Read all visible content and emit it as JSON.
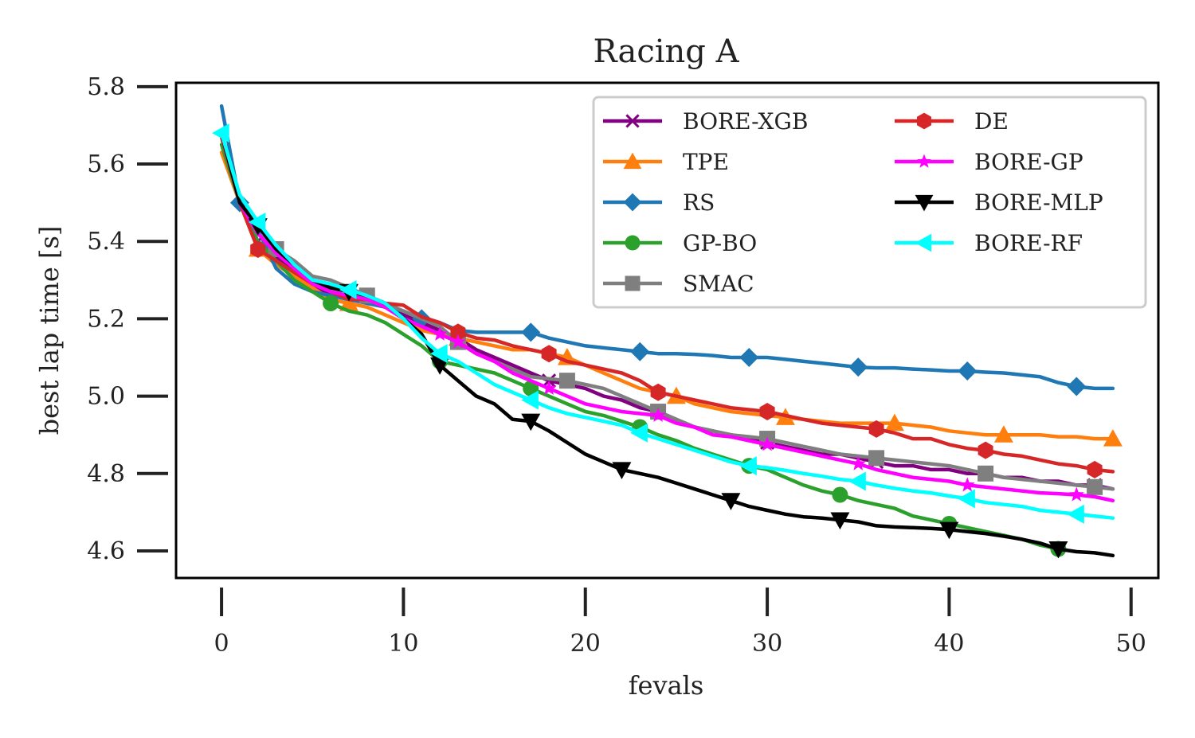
{
  "chart_data": {
    "type": "line",
    "title": "Racing A",
    "xlabel": "fevals",
    "ylabel": "best lap time [s]",
    "xlim": [
      -2.5,
      51.5
    ],
    "ylim": [
      4.53,
      5.81
    ],
    "xticks": [
      0,
      10,
      20,
      30,
      40,
      50
    ],
    "xtick_labels": [
      "0",
      "10",
      "20",
      "30",
      "40",
      "50"
    ],
    "yticks": [
      4.6,
      4.8,
      5.0,
      5.2,
      5.4,
      5.6,
      5.8
    ],
    "ytick_labels": [
      "4.6",
      "4.8",
      "5.0",
      "5.2",
      "5.4",
      "5.6",
      "5.8"
    ],
    "grid": false,
    "legend_position": "upper-right",
    "legend_columns": 2,
    "series": [
      {
        "name": "BORE-XGB",
        "color": "#800080",
        "marker": "x",
        "x": [
          0,
          1,
          2,
          3,
          4,
          5,
          6,
          7,
          8,
          9,
          10,
          11,
          12,
          13,
          14,
          15,
          16,
          17,
          18,
          19,
          20,
          21,
          22,
          23,
          24,
          25,
          26,
          27,
          28,
          29,
          30,
          31,
          32,
          33,
          34,
          35,
          36,
          37,
          38,
          39,
          40,
          41,
          42,
          43,
          44,
          45,
          46,
          47,
          48,
          49
        ],
        "y": [
          5.67,
          5.5,
          5.4,
          5.36,
          5.32,
          5.29,
          5.26,
          5.25,
          5.25,
          5.23,
          5.21,
          5.19,
          5.17,
          5.15,
          5.12,
          5.1,
          5.08,
          5.06,
          5.04,
          5.03,
          5.02,
          5.0,
          4.99,
          4.97,
          4.96,
          4.94,
          4.92,
          4.91,
          4.9,
          4.89,
          4.88,
          4.87,
          4.86,
          4.85,
          4.85,
          4.84,
          4.83,
          4.82,
          4.82,
          4.81,
          4.81,
          4.8,
          4.8,
          4.79,
          4.79,
          4.78,
          4.78,
          4.77,
          4.77,
          4.76
        ],
        "markers_at": [
          2,
          18,
          24,
          30,
          36,
          42,
          48
        ]
      },
      {
        "name": "TPE",
        "color": "#ff7f0e",
        "marker": "^",
        "x": [
          0,
          1,
          2,
          3,
          4,
          5,
          6,
          7,
          8,
          9,
          10,
          11,
          12,
          13,
          14,
          15,
          16,
          17,
          18,
          19,
          20,
          21,
          22,
          23,
          24,
          25,
          26,
          27,
          28,
          29,
          30,
          31,
          32,
          33,
          34,
          35,
          36,
          37,
          38,
          39,
          40,
          41,
          42,
          43,
          44,
          45,
          46,
          47,
          48,
          49
        ],
        "y": [
          5.63,
          5.5,
          5.38,
          5.34,
          5.31,
          5.28,
          5.25,
          5.24,
          5.23,
          5.21,
          5.19,
          5.17,
          5.16,
          5.15,
          5.14,
          5.13,
          5.12,
          5.12,
          5.11,
          5.1,
          5.08,
          5.06,
          5.04,
          5.02,
          5.01,
          5.0,
          4.98,
          4.97,
          4.96,
          4.955,
          4.95,
          4.945,
          4.94,
          4.935,
          4.93,
          4.93,
          4.93,
          4.93,
          4.925,
          4.92,
          4.91,
          4.905,
          4.9,
          4.9,
          4.9,
          4.9,
          4.895,
          4.895,
          4.89,
          4.89
        ],
        "markers_at": [
          2,
          7,
          13,
          19,
          25,
          31,
          37,
          43,
          49
        ]
      },
      {
        "name": "RS",
        "color": "#1f77b4",
        "marker": "D",
        "x": [
          0,
          1,
          2,
          3,
          4,
          5,
          6,
          7,
          8,
          9,
          10,
          11,
          12,
          13,
          14,
          15,
          16,
          17,
          18,
          19,
          20,
          21,
          22,
          23,
          24,
          25,
          26,
          27,
          28,
          29,
          30,
          31,
          32,
          33,
          34,
          35,
          36,
          37,
          38,
          39,
          40,
          41,
          42,
          43,
          44,
          45,
          46,
          47,
          48,
          49
        ],
        "y": [
          5.75,
          5.5,
          5.43,
          5.33,
          5.29,
          5.27,
          5.26,
          5.25,
          5.24,
          5.23,
          5.22,
          5.2,
          5.19,
          5.17,
          5.165,
          5.165,
          5.165,
          5.165,
          5.15,
          5.14,
          5.13,
          5.125,
          5.12,
          5.115,
          5.11,
          5.11,
          5.108,
          5.105,
          5.1,
          5.1,
          5.1,
          5.095,
          5.09,
          5.085,
          5.08,
          5.075,
          5.073,
          5.073,
          5.07,
          5.068,
          5.065,
          5.065,
          5.062,
          5.06,
          5.055,
          5.05,
          5.035,
          5.025,
          5.02,
          5.02
        ],
        "markers_at": [
          1,
          11,
          17,
          23,
          29,
          35,
          41,
          47
        ]
      },
      {
        "name": "GP-BO",
        "color": "#2ca02c",
        "marker": "o",
        "x": [
          0,
          1,
          2,
          3,
          4,
          5,
          6,
          7,
          8,
          9,
          10,
          11,
          12,
          13,
          14,
          15,
          16,
          17,
          18,
          19,
          20,
          21,
          22,
          23,
          24,
          25,
          26,
          27,
          28,
          29,
          30,
          31,
          32,
          33,
          34,
          35,
          36,
          37,
          38,
          39,
          40,
          41,
          42,
          43,
          44,
          45,
          46
        ],
        "y": [
          5.65,
          5.5,
          5.4,
          5.35,
          5.3,
          5.27,
          5.24,
          5.22,
          5.21,
          5.19,
          5.16,
          5.13,
          5.09,
          5.08,
          5.07,
          5.06,
          5.04,
          5.02,
          5.0,
          4.98,
          4.96,
          4.95,
          4.935,
          4.92,
          4.9,
          4.885,
          4.865,
          4.85,
          4.835,
          4.82,
          4.81,
          4.79,
          4.77,
          4.755,
          4.745,
          4.73,
          4.72,
          4.71,
          4.69,
          4.68,
          4.67,
          4.66,
          4.65,
          4.64,
          4.63,
          4.615,
          4.605
        ],
        "markers_at": [
          6,
          12,
          17,
          23,
          29,
          34,
          40,
          46
        ]
      },
      {
        "name": "SMAC",
        "color": "#7f7f7f",
        "marker": "s",
        "x": [
          0,
          1,
          2,
          3,
          4,
          5,
          6,
          7,
          8,
          9,
          10,
          11,
          12,
          13,
          14,
          15,
          16,
          17,
          18,
          19,
          20,
          21,
          22,
          23,
          24,
          25,
          26,
          27,
          28,
          29,
          30,
          31,
          32,
          33,
          34,
          35,
          36,
          37,
          38,
          39,
          40,
          41,
          42,
          43,
          44,
          45,
          46,
          47,
          48,
          49
        ],
        "y": [
          5.68,
          5.5,
          5.42,
          5.38,
          5.35,
          5.31,
          5.3,
          5.28,
          5.26,
          5.24,
          5.22,
          5.2,
          5.18,
          5.14,
          5.11,
          5.09,
          5.07,
          5.05,
          5.045,
          5.04,
          5.03,
          5.02,
          5.0,
          4.98,
          4.96,
          4.94,
          4.92,
          4.91,
          4.9,
          4.895,
          4.89,
          4.88,
          4.87,
          4.86,
          4.85,
          4.845,
          4.84,
          4.835,
          4.83,
          4.825,
          4.82,
          4.81,
          4.8,
          4.79,
          4.785,
          4.78,
          4.775,
          4.77,
          4.765,
          4.76
        ],
        "markers_at": [
          3,
          8,
          13,
          19,
          24,
          30,
          36,
          42,
          48
        ]
      },
      {
        "name": "DE",
        "color": "#d62728",
        "marker": "h",
        "x": [
          0,
          1,
          2,
          3,
          4,
          5,
          6,
          7,
          8,
          9,
          10,
          11,
          12,
          13,
          14,
          15,
          16,
          17,
          18,
          19,
          20,
          21,
          22,
          23,
          24,
          25,
          26,
          27,
          28,
          29,
          30,
          31,
          32,
          33,
          34,
          35,
          36,
          37,
          38,
          39,
          40,
          41,
          42,
          43,
          44,
          45,
          46,
          47,
          48,
          49
        ],
        "y": [
          5.67,
          5.5,
          5.38,
          5.35,
          5.32,
          5.29,
          5.27,
          5.25,
          5.25,
          5.24,
          5.235,
          5.205,
          5.19,
          5.165,
          5.15,
          5.145,
          5.13,
          5.12,
          5.11,
          5.09,
          5.08,
          5.07,
          5.06,
          5.04,
          5.01,
          5.0,
          4.99,
          4.98,
          4.97,
          4.965,
          4.96,
          4.95,
          4.94,
          4.93,
          4.925,
          4.92,
          4.915,
          4.905,
          4.89,
          4.89,
          4.875,
          4.865,
          4.86,
          4.85,
          4.845,
          4.835,
          4.825,
          4.82,
          4.81,
          4.805
        ],
        "markers_at": [
          2,
          13,
          18,
          24,
          30,
          36,
          42,
          48
        ]
      },
      {
        "name": "BORE-GP",
        "color": "#ff00ff",
        "marker": "*",
        "x": [
          0,
          1,
          2,
          3,
          4,
          5,
          6,
          7,
          8,
          9,
          10,
          11,
          12,
          13,
          14,
          15,
          16,
          17,
          18,
          19,
          20,
          21,
          22,
          23,
          24,
          25,
          26,
          27,
          28,
          29,
          30,
          31,
          32,
          33,
          34,
          35,
          36,
          37,
          38,
          39,
          40,
          41,
          42,
          43,
          44,
          45,
          46,
          47,
          48,
          49
        ],
        "y": [
          5.68,
          5.5,
          5.42,
          5.37,
          5.33,
          5.29,
          5.27,
          5.26,
          5.25,
          5.23,
          5.2,
          5.18,
          5.16,
          5.14,
          5.11,
          5.09,
          5.06,
          5.04,
          5.02,
          5.0,
          4.98,
          4.97,
          4.96,
          4.955,
          4.95,
          4.93,
          4.92,
          4.9,
          4.895,
          4.885,
          4.875,
          4.865,
          4.855,
          4.845,
          4.835,
          4.825,
          4.81,
          4.8,
          4.79,
          4.785,
          4.78,
          4.77,
          4.765,
          4.76,
          4.755,
          4.75,
          4.748,
          4.745,
          4.74,
          4.73
        ],
        "markers_at": [
          12,
          13,
          18,
          24,
          30,
          35,
          41,
          47
        ]
      },
      {
        "name": "BORE-MLP",
        "color": "#000000",
        "marker": "v",
        "x": [
          0,
          1,
          2,
          3,
          4,
          5,
          6,
          7,
          8,
          9,
          10,
          11,
          12,
          13,
          14,
          15,
          16,
          17,
          18,
          19,
          20,
          21,
          22,
          23,
          24,
          25,
          26,
          27,
          28,
          29,
          30,
          31,
          32,
          33,
          34,
          35,
          36,
          37,
          38,
          39,
          40,
          41,
          42,
          43,
          44,
          45,
          46,
          47,
          48,
          49
        ],
        "y": [
          5.68,
          5.5,
          5.44,
          5.38,
          5.34,
          5.3,
          5.28,
          5.27,
          5.26,
          5.24,
          5.2,
          5.16,
          5.08,
          5.04,
          5.0,
          4.98,
          4.94,
          4.935,
          4.91,
          4.88,
          4.85,
          4.83,
          4.81,
          4.8,
          4.79,
          4.775,
          4.76,
          4.745,
          4.73,
          4.715,
          4.705,
          4.695,
          4.688,
          4.685,
          4.68,
          4.675,
          4.665,
          4.662,
          4.66,
          4.658,
          4.655,
          4.65,
          4.645,
          4.638,
          4.63,
          4.62,
          4.605,
          4.598,
          4.595,
          4.588
        ],
        "markers_at": [
          2,
          7,
          12,
          17,
          22,
          28,
          34,
          40,
          46
        ]
      },
      {
        "name": "BORE-RF",
        "color": "#00ffff",
        "marker": "<",
        "x": [
          0,
          1,
          2,
          3,
          4,
          5,
          6,
          7,
          8,
          9,
          10,
          11,
          12,
          13,
          14,
          15,
          16,
          17,
          18,
          19,
          20,
          21,
          22,
          23,
          24,
          25,
          26,
          27,
          28,
          29,
          30,
          31,
          32,
          33,
          34,
          35,
          36,
          37,
          38,
          39,
          40,
          41,
          42,
          43,
          44,
          45,
          46,
          47,
          48,
          49
        ],
        "y": [
          5.68,
          5.52,
          5.45,
          5.39,
          5.34,
          5.3,
          5.29,
          5.275,
          5.26,
          5.24,
          5.2,
          5.15,
          5.11,
          5.09,
          5.06,
          5.03,
          5.01,
          4.99,
          4.97,
          4.955,
          4.945,
          4.935,
          4.925,
          4.905,
          4.89,
          4.875,
          4.86,
          4.845,
          4.83,
          4.82,
          4.815,
          4.808,
          4.8,
          4.793,
          4.785,
          4.78,
          4.77,
          4.762,
          4.755,
          4.75,
          4.742,
          4.735,
          4.725,
          4.72,
          4.715,
          4.705,
          4.7,
          4.695,
          4.69,
          4.685
        ],
        "markers_at": [
          0,
          2,
          7,
          12,
          17,
          23,
          29,
          35,
          41,
          47
        ]
      }
    ]
  }
}
